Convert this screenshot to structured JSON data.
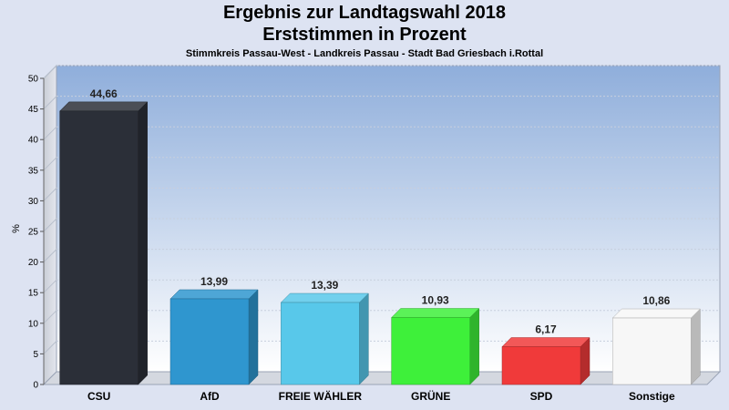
{
  "chart_data": {
    "type": "bar",
    "title": "Ergebnis zur Landtagswahl 2018",
    "subtitle": "Erststimmen in Prozent",
    "caption": "Stimmkreis Passau-West - Landkreis Passau - Stadt Bad Griesbach i.Rottal",
    "xlabel": "",
    "ylabel": "%",
    "ylim": [
      0,
      50
    ],
    "yticks": [
      0,
      5,
      10,
      15,
      20,
      25,
      30,
      35,
      40,
      45,
      50
    ],
    "grid": true,
    "categories": [
      "CSU",
      "AfD",
      "FREIE WÄHLER",
      "GRÜNE",
      "SPD",
      "Sonstige"
    ],
    "values": [
      44.66,
      13.99,
      13.39,
      10.93,
      6.17,
      10.86
    ],
    "value_labels": [
      "44,66",
      "13,99",
      "13,39",
      "10,93",
      "6,17",
      "10,86"
    ],
    "colors": [
      "#2b2f38",
      "#2f96cf",
      "#58c8ea",
      "#3ef03a",
      "#f03a3a",
      "#f7f7f7"
    ]
  }
}
